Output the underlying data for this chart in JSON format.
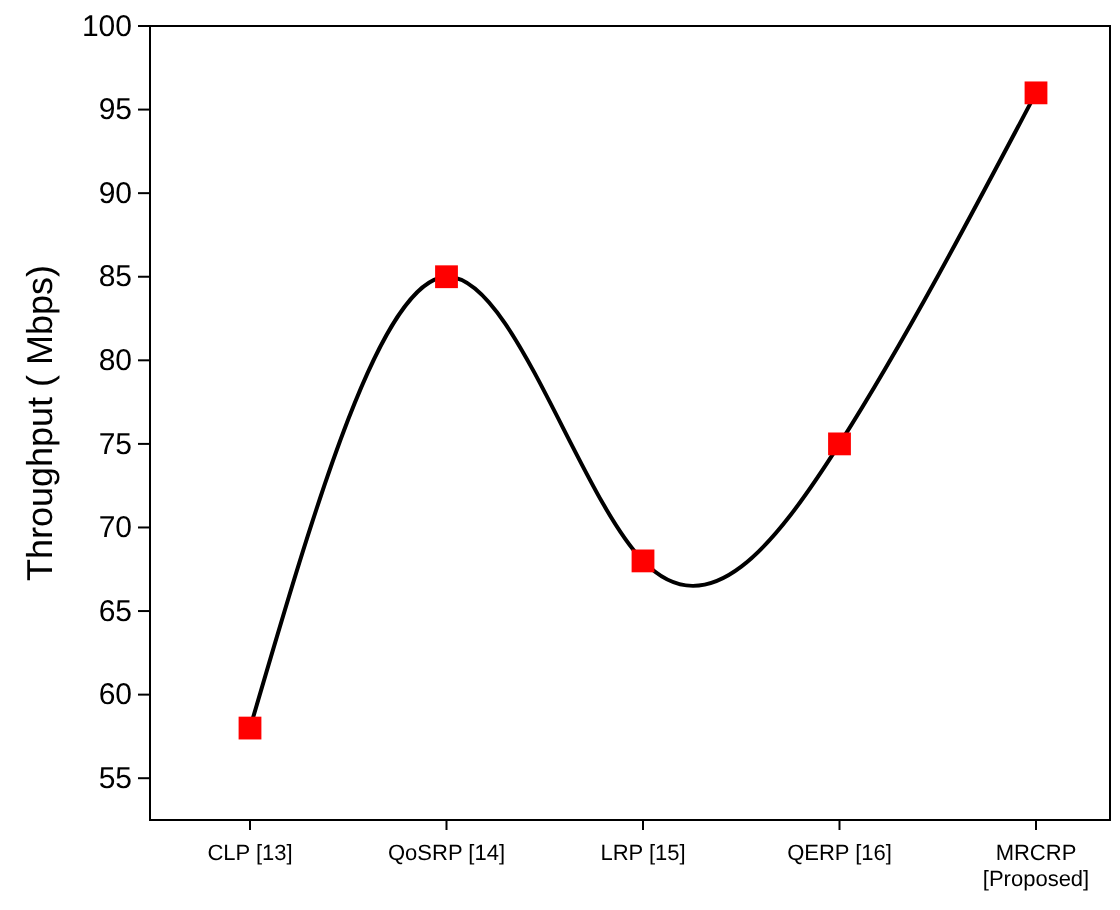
{
  "chart_data": {
    "type": "line",
    "ylabel": "Throughput ( Mbps)",
    "categories": [
      "CLP [13]",
      "QoSRP [14]",
      "LRP [15]",
      "QERP [16]",
      "MRCRP\n[Proposed]"
    ],
    "series": [
      {
        "color": "#000000",
        "colors": [
          "#ff0000",
          "#ff0000",
          "#ff0000",
          "#ff0000",
          "#ff0000"
        ],
        "values": [
          58,
          85,
          68,
          75,
          96
        ]
      }
    ],
    "ylim": [
      52.5,
      100
    ],
    "yticks": [
      55,
      60,
      65,
      70,
      75,
      80,
      85,
      90,
      95,
      100
    ],
    "marker": "square",
    "line_style": "solid"
  }
}
